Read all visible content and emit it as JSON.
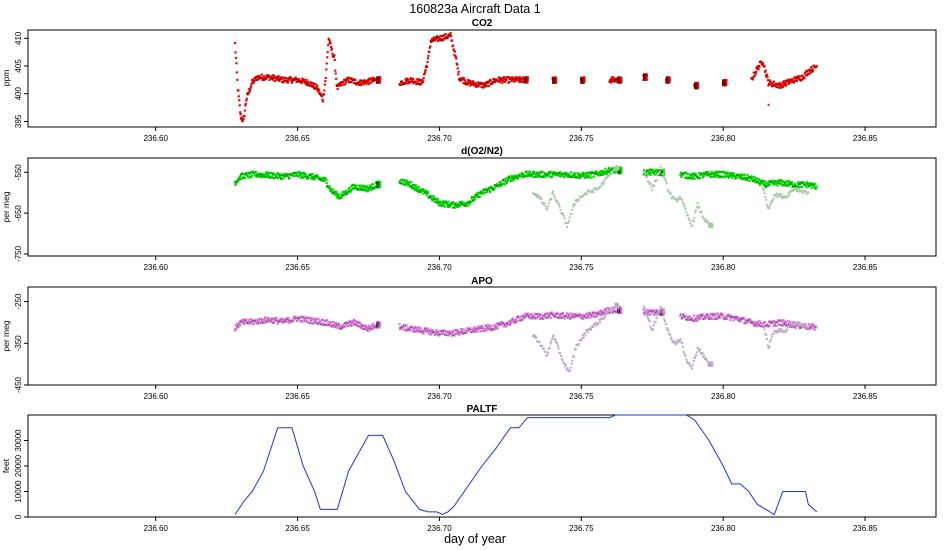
{
  "figure": {
    "title": "160823a   Aircraft Data 1",
    "xlabel": "day of year"
  },
  "chart_data": [
    {
      "type": "scatter",
      "title": "CO2",
      "ylabel": "ppm",
      "xlim": [
        236.555,
        236.875
      ],
      "ylim": [
        394,
        411.5
      ],
      "x_ticks": [
        "236.60",
        "236.65",
        "236.70",
        "236.75",
        "236.80",
        "236.85"
      ],
      "y_ticks": [
        "395",
        "400",
        "405",
        "410"
      ],
      "grid": false,
      "series": [
        {
          "color": "#ff0000",
          "outline_color": "#000000",
          "x": [
            236.628,
            236.629,
            236.63,
            236.631,
            236.632,
            236.634,
            236.636,
            236.64,
            236.645,
            236.65,
            236.654,
            236.657,
            236.659,
            236.66,
            236.661,
            236.662,
            236.663,
            236.664,
            236.666,
            236.668,
            236.672,
            236.678,
            236.686,
            236.69,
            236.694,
            236.696,
            236.697,
            236.7,
            236.704,
            236.706,
            236.707,
            236.71,
            236.716,
            236.72,
            236.725,
            236.73,
            236.74,
            236.75,
            236.76,
            236.763,
            236.772,
            236.78,
            236.79,
            236.8,
            236.81,
            236.812,
            236.814,
            236.816,
            236.82,
            236.825,
            236.828,
            236.83,
            236.833
          ],
          "y": [
            409,
            401,
            396,
            395,
            399,
            402,
            403,
            403,
            402.5,
            402.5,
            402,
            401,
            399,
            403,
            410,
            408,
            406.5,
            401,
            402,
            402.5,
            402,
            402.5,
            402,
            402.5,
            402,
            406,
            409.5,
            410,
            410.5,
            406,
            403,
            402,
            401.5,
            402.5,
            402.5,
            402.5,
            402.5,
            402.5,
            402.5,
            402.5,
            403,
            402.5,
            401.5,
            402,
            402.5,
            404.5,
            406,
            402,
            401.5,
            402.5,
            403,
            404,
            405
          ]
        },
        {
          "color": "#ff0000",
          "outline_color": "#000000",
          "x": [
            236.816
          ],
          "y": [
            398
          ]
        }
      ]
    },
    {
      "type": "scatter",
      "title": "d(O2/N2)",
      "ylabel": "per meg",
      "xlim": [
        236.555,
        236.875
      ],
      "ylim": [
        -755,
        -515
      ],
      "x_ticks": [
        "236.60",
        "236.65",
        "236.70",
        "236.75",
        "236.80",
        "236.85"
      ],
      "y_ticks": [
        "-550",
        "-650",
        "-750"
      ],
      "grid": false,
      "series": [
        {
          "color": "#00ee00",
          "outline_color": "#000000",
          "x": [
            236.628,
            236.63,
            236.635,
            236.64,
            236.645,
            236.65,
            236.655,
            236.66,
            236.662,
            236.665,
            236.67,
            236.675,
            236.678,
            236.686,
            236.69,
            236.695,
            236.7,
            236.705,
            236.71,
            236.715,
            236.72,
            236.725,
            236.73,
            236.736,
            236.74,
            236.746,
            236.75,
            236.755,
            236.76,
            236.763,
            236.772,
            236.778,
            236.785,
            236.79,
            236.795,
            236.8,
            236.805,
            236.81,
            236.815,
            236.82,
            236.825,
            236.83,
            236.833
          ],
          "y": [
            -575,
            -560,
            -555,
            -557,
            -560,
            -555,
            -560,
            -570,
            -595,
            -610,
            -585,
            -590,
            -580,
            -570,
            -580,
            -600,
            -625,
            -630,
            -625,
            -600,
            -585,
            -565,
            -555,
            -555,
            -555,
            -555,
            -558,
            -555,
            -545,
            -545,
            -550,
            -550,
            -555,
            -560,
            -555,
            -555,
            -560,
            -565,
            -580,
            -575,
            -580,
            -580,
            -585
          ]
        },
        {
          "color": "#a8c8a8",
          "x": [
            236.733,
            236.735,
            236.738,
            236.74,
            236.745,
            236.748,
            236.752,
            236.756,
            236.762,
            236.772,
            236.775,
            236.778,
            236.781,
            236.783,
            236.785,
            236.787,
            236.789,
            236.791,
            236.793,
            236.795,
            236.814,
            236.816,
            236.818,
            236.822,
            236.825,
            236.83
          ],
          "y": [
            -600,
            -610,
            -640,
            -600,
            -680,
            -620,
            -600,
            -590,
            -540,
            -545,
            -590,
            -540,
            -600,
            -620,
            -610,
            -650,
            -680,
            -630,
            -660,
            -680,
            -590,
            -640,
            -605,
            -610,
            -590,
            -600
          ]
        }
      ]
    },
    {
      "type": "scatter",
      "title": "APO",
      "ylabel": "per meg",
      "xlim": [
        236.555,
        236.875
      ],
      "ylim": [
        -450,
        -215
      ],
      "x_ticks": [
        "236.60",
        "236.65",
        "236.70",
        "236.75",
        "236.80",
        "236.85"
      ],
      "y_ticks": [
        "-250",
        "-350",
        "-450"
      ],
      "grid": false,
      "series": [
        {
          "color": "#ee82ee",
          "outline_color": "#000000",
          "x": [
            236.628,
            236.63,
            236.635,
            236.64,
            236.645,
            236.65,
            236.655,
            236.66,
            236.665,
            236.67,
            236.675,
            236.678,
            236.686,
            236.69,
            236.695,
            236.7,
            236.705,
            236.71,
            236.715,
            236.72,
            236.725,
            236.73,
            236.736,
            236.74,
            236.746,
            236.75,
            236.755,
            236.76,
            236.763,
            236.772,
            236.778,
            236.785,
            236.79,
            236.795,
            236.8,
            236.805,
            236.81,
            236.815,
            236.82,
            236.825,
            236.83,
            236.833
          ],
          "y": [
            -315,
            -300,
            -298,
            -293,
            -298,
            -290,
            -295,
            -300,
            -310,
            -300,
            -315,
            -305,
            -310,
            -315,
            -320,
            -325,
            -325,
            -320,
            -315,
            -310,
            -300,
            -285,
            -285,
            -282,
            -285,
            -285,
            -282,
            -270,
            -270,
            -275,
            -275,
            -285,
            -290,
            -285,
            -285,
            -290,
            -300,
            -305,
            -300,
            -305,
            -310,
            -312
          ]
        },
        {
          "color": "#c0a8c8",
          "x": [
            236.733,
            236.735,
            236.738,
            236.74,
            236.744,
            236.746,
            236.748,
            236.752,
            236.756,
            236.762,
            236.772,
            236.775,
            236.778,
            236.781,
            236.783,
            236.785,
            236.787,
            236.789,
            236.791,
            236.793,
            236.795,
            236.814,
            236.816,
            236.818,
            236.822,
            236.825,
            236.83
          ],
          "y": [
            -330,
            -345,
            -380,
            -330,
            -400,
            -420,
            -360,
            -320,
            -300,
            -260,
            -260,
            -320,
            -260,
            -330,
            -350,
            -340,
            -390,
            -410,
            -360,
            -380,
            -400,
            -300,
            -360,
            -320,
            -320,
            -300,
            -310
          ]
        }
      ]
    },
    {
      "type": "line",
      "title": "PALTF",
      "ylabel": "feet",
      "xlim": [
        236.555,
        236.875
      ],
      "ylim": [
        0,
        40000
      ],
      "x_ticks": [
        "236.60",
        "236.65",
        "236.70",
        "236.75",
        "236.80",
        "236.85"
      ],
      "y_ticks": [
        "0",
        "10000",
        "20000",
        "30000"
      ],
      "grid": false,
      "series": [
        {
          "color": "#2233dd",
          "x": [
            236.628,
            236.631,
            236.634,
            236.638,
            236.643,
            236.648,
            236.652,
            236.656,
            236.658,
            236.661,
            236.664,
            236.668,
            236.671,
            236.675,
            236.68,
            236.684,
            236.688,
            236.693,
            236.696,
            236.699,
            236.701,
            236.703,
            236.705,
            236.71,
            236.715,
            236.72,
            236.725,
            236.728,
            236.731,
            236.76,
            236.762,
            236.787,
            236.79,
            236.795,
            236.8,
            236.803,
            236.806,
            236.809,
            236.812,
            236.818,
            236.821,
            236.829,
            236.83,
            236.833
          ],
          "y": [
            1000,
            6000,
            10000,
            18000,
            35000,
            35000,
            20000,
            10000,
            3000,
            3000,
            3000,
            18000,
            24000,
            32000,
            32000,
            22000,
            10000,
            3000,
            2000,
            2000,
            1000,
            2000,
            4000,
            12000,
            20000,
            27000,
            35000,
            35000,
            39000,
            39000,
            40000,
            40000,
            38000,
            30000,
            20000,
            13000,
            13000,
            10000,
            5000,
            1000,
            10000,
            10000,
            5000,
            2000
          ]
        }
      ]
    }
  ]
}
